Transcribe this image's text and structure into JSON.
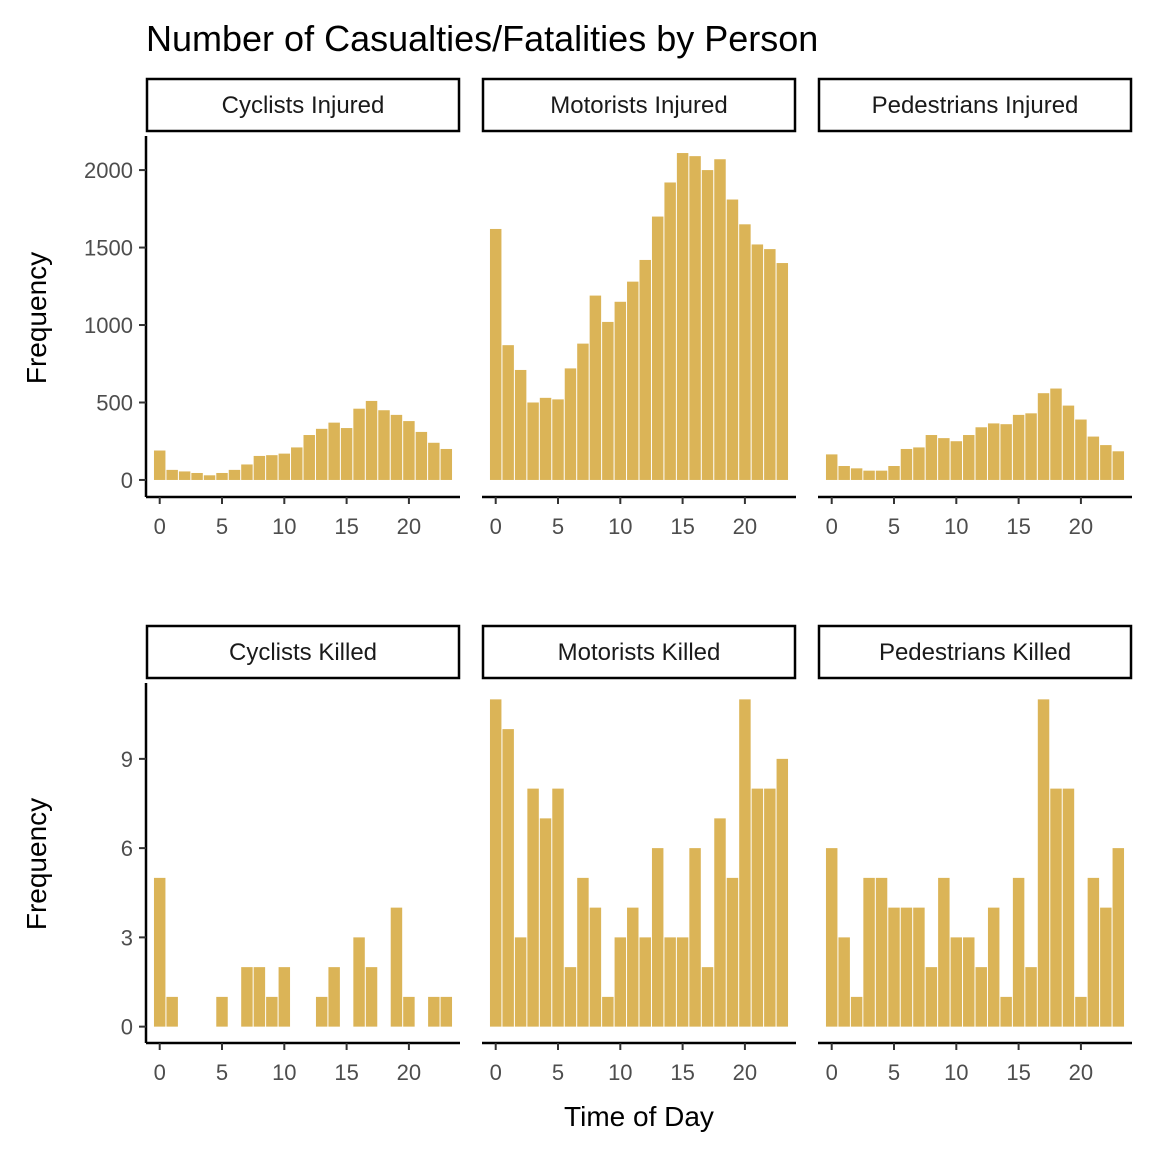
{
  "title": "Number of Casualties/Fatalities by Person",
  "xlabel": "Time of Day",
  "ylabel": "Frequency",
  "bar_color": "#DBB457",
  "chart_data": [
    {
      "type": "bar",
      "panel": "Cyclists Injured",
      "x": [
        0,
        1,
        2,
        3,
        4,
        5,
        6,
        7,
        8,
        9,
        10,
        11,
        12,
        13,
        14,
        15,
        16,
        17,
        18,
        19,
        20,
        21,
        22,
        23
      ],
      "values": [
        190,
        65,
        55,
        45,
        30,
        45,
        65,
        100,
        155,
        160,
        170,
        210,
        290,
        330,
        370,
        335,
        460,
        510,
        450,
        420,
        380,
        310,
        240,
        200
      ],
      "xticks": [
        0,
        5,
        10,
        15,
        20
      ],
      "yticks": [
        0,
        500,
        1000,
        1500,
        2000
      ],
      "ylim": [
        -110,
        2220
      ]
    },
    {
      "type": "bar",
      "panel": "Motorists Injured",
      "x": [
        0,
        1,
        2,
        3,
        4,
        5,
        6,
        7,
        8,
        9,
        10,
        11,
        12,
        13,
        14,
        15,
        16,
        17,
        18,
        19,
        20,
        21,
        22,
        23
      ],
      "values": [
        1620,
        870,
        710,
        500,
        530,
        520,
        720,
        880,
        1190,
        1020,
        1150,
        1280,
        1420,
        1700,
        1920,
        2110,
        2090,
        2000,
        2070,
        1810,
        1650,
        1520,
        1490,
        1400
      ],
      "xticks": [
        0,
        5,
        10,
        15,
        20
      ],
      "yticks": [
        0,
        500,
        1000,
        1500,
        2000
      ],
      "ylim": [
        -110,
        2220
      ]
    },
    {
      "type": "bar",
      "panel": "Pedestrians Injured",
      "x": [
        0,
        1,
        2,
        3,
        4,
        5,
        6,
        7,
        8,
        9,
        10,
        11,
        12,
        13,
        14,
        15,
        16,
        17,
        18,
        19,
        20,
        21,
        22,
        23
      ],
      "values": [
        165,
        90,
        75,
        60,
        60,
        90,
        200,
        210,
        290,
        270,
        250,
        290,
        340,
        365,
        360,
        420,
        430,
        560,
        590,
        480,
        390,
        280,
        225,
        185
      ],
      "xticks": [
        0,
        5,
        10,
        15,
        20
      ],
      "yticks": [
        0,
        500,
        1000,
        1500,
        2000
      ],
      "ylim": [
        -110,
        2220
      ]
    },
    {
      "type": "bar",
      "panel": "Cyclists Killed",
      "x": [
        0,
        1,
        2,
        3,
        4,
        5,
        6,
        7,
        8,
        9,
        10,
        11,
        12,
        13,
        14,
        15,
        16,
        17,
        18,
        19,
        20,
        21,
        22,
        23
      ],
      "values": [
        5,
        1,
        0,
        0,
        0,
        1,
        0,
        2,
        2,
        1,
        2,
        0,
        0,
        1,
        2,
        0,
        3,
        2,
        0,
        4,
        1,
        0,
        1,
        1
      ],
      "xticks": [
        0,
        5,
        10,
        15,
        20
      ],
      "yticks": [
        0,
        3,
        6,
        9
      ],
      "ylim": [
        -0.55,
        11.55
      ]
    },
    {
      "type": "bar",
      "panel": "Motorists Killed",
      "x": [
        0,
        1,
        2,
        3,
        4,
        5,
        6,
        7,
        8,
        9,
        10,
        11,
        12,
        13,
        14,
        15,
        16,
        17,
        18,
        19,
        20,
        21,
        22,
        23
      ],
      "values": [
        11,
        10,
        3,
        8,
        7,
        8,
        2,
        5,
        4,
        1,
        3,
        4,
        3,
        6,
        3,
        3,
        6,
        2,
        7,
        5,
        11,
        8,
        8,
        9
      ],
      "xticks": [
        0,
        5,
        10,
        15,
        20
      ],
      "yticks": [
        0,
        3,
        6,
        9
      ],
      "ylim": [
        -0.55,
        11.55
      ]
    },
    {
      "type": "bar",
      "panel": "Pedestrians Killed",
      "x": [
        0,
        1,
        2,
        3,
        4,
        5,
        6,
        7,
        8,
        9,
        10,
        11,
        12,
        13,
        14,
        15,
        16,
        17,
        18,
        19,
        20,
        21,
        22,
        23
      ],
      "values": [
        6,
        3,
        1,
        5,
        5,
        4,
        4,
        4,
        2,
        5,
        3,
        3,
        2,
        4,
        1,
        5,
        2,
        11,
        8,
        8,
        1,
        5,
        4,
        6
      ],
      "xticks": [
        0,
        5,
        10,
        15,
        20
      ],
      "yticks": [
        0,
        3,
        6,
        9
      ],
      "ylim": [
        -0.55,
        11.55
      ]
    }
  ]
}
